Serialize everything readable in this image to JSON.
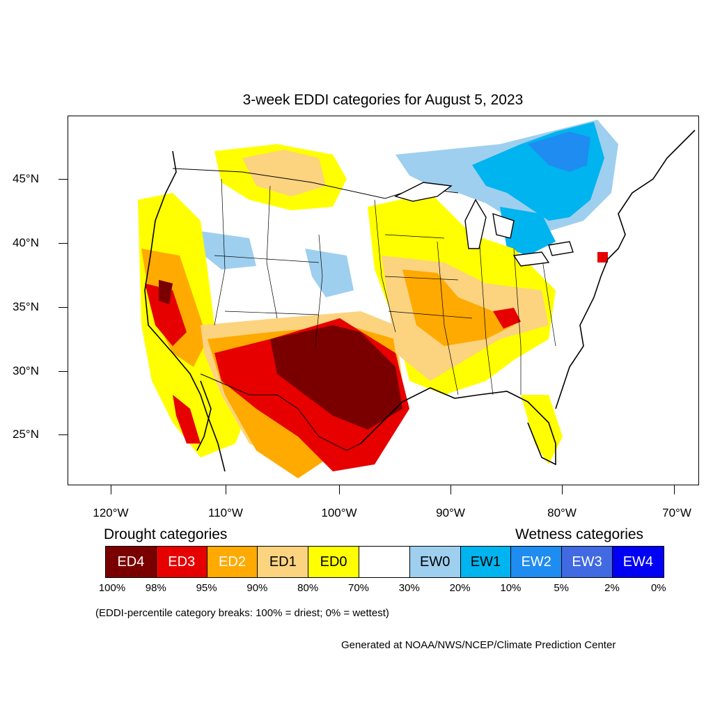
{
  "title": "3-week EDDI categories for August 5, 2023",
  "lat_labels": [
    "45°N",
    "40°N",
    "35°N",
    "30°N",
    "25°N"
  ],
  "lon_labels": [
    "120°W",
    "110°W",
    "100°W",
    "90°W",
    "80°W",
    "70°W"
  ],
  "legend": {
    "drought_heading": "Drought categories",
    "wetness_heading": "Wetness categories",
    "categories": [
      {
        "label": "ED4",
        "color": "#7a0000",
        "text_color": "#ffffff"
      },
      {
        "label": "ED3",
        "color": "#e60000",
        "text_color": "#ffffff"
      },
      {
        "label": "ED2",
        "color": "#ffaa00",
        "text_color": "#ffffff"
      },
      {
        "label": "ED1",
        "color": "#fcd37f",
        "text_color": "#000000"
      },
      {
        "label": "ED0",
        "color": "#ffff00",
        "text_color": "#000000"
      },
      {
        "label": "",
        "color": "#ffffff",
        "text_color": "#000000"
      },
      {
        "label": "EW0",
        "color": "#9ecfef",
        "text_color": "#000000"
      },
      {
        "label": "EW1",
        "color": "#00b4ef",
        "text_color": "#000000"
      },
      {
        "label": "EW2",
        "color": "#1e8cf0",
        "text_color": "#ffffff"
      },
      {
        "label": "EW3",
        "color": "#4169e1",
        "text_color": "#ffffff"
      },
      {
        "label": "EW4",
        "color": "#0000f5",
        "text_color": "#ffffff"
      }
    ],
    "percentiles": [
      "100%",
      "98%",
      "95%",
      "90%",
      "80%",
      "70%",
      "30%",
      "20%",
      "10%",
      "5%",
      "2%",
      "0%"
    ]
  },
  "note": "(EDDI-percentile category breaks: 100% = driest; 0% = wettest)",
  "credit": "Generated at NOAA/NWS/NCEP/Climate Prediction Center"
}
